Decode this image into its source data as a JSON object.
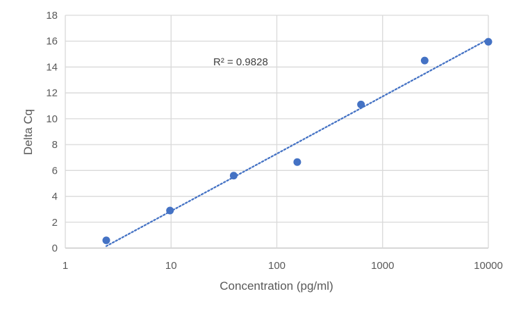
{
  "chart_data": {
    "type": "scatter",
    "title": "",
    "xlabel": "Concentration (pg/ml)",
    "ylabel": "Delta Cq",
    "x_scale": "log",
    "xlim": [
      1,
      10000
    ],
    "ylim": [
      0,
      18
    ],
    "x_tick_labels": [
      "1",
      "10",
      "100",
      "1000",
      "10000"
    ],
    "y_tick_labels": [
      "0",
      "2",
      "4",
      "6",
      "8",
      "10",
      "12",
      "14",
      "16",
      "18"
    ],
    "grid": true,
    "legend": "none",
    "series": [
      {
        "x": [
          2.44,
          9.77,
          39.1,
          156,
          625,
          2500,
          10000
        ],
        "y": [
          0.6,
          2.9,
          5.6,
          6.65,
          11.1,
          14.5,
          15.95
        ]
      }
    ],
    "trendline": {
      "type": "logarithmic",
      "style": "dotted",
      "from": [
        2.44,
        0.15
      ],
      "to": [
        10000,
        16.15
      ],
      "annotation": "R² = 0.9828"
    },
    "colors": {
      "marker": "#4472c4",
      "trendline": "#4472c4",
      "grid": "#d9d9d9",
      "text": "#595959"
    }
  }
}
